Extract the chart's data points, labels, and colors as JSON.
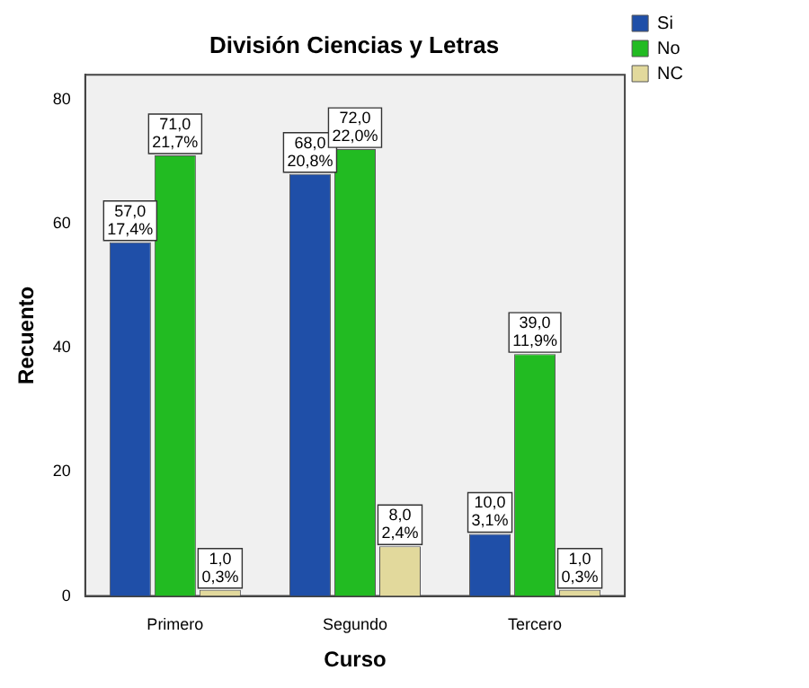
{
  "chart_data": {
    "type": "bar",
    "title": "División Ciencias y Letras",
    "xlabel": "Curso",
    "ylabel": "Recuento",
    "categories": [
      "Primero",
      "Segundo",
      "Tercero"
    ],
    "series": [
      {
        "name": "Si",
        "color": "#1f4fa8",
        "values": [
          57,
          68,
          10
        ],
        "value_labels": [
          "57,0\n17,4%",
          "68,0\n20,8%",
          "10,0\n3,1%"
        ]
      },
      {
        "name": "No",
        "color": "#22bb22",
        "values": [
          71,
          72,
          39
        ],
        "value_labels": [
          "71,0\n21,7%",
          "72,0\n22,0%",
          "39,0\n11,9%"
        ]
      },
      {
        "name": "NC",
        "color": "#e2d99c",
        "values": [
          1,
          8,
          1
        ],
        "value_labels": [
          "1,0\n0,3%",
          "8,0\n2,4%",
          "1,0\n0,3%"
        ]
      }
    ],
    "ylim": [
      0,
      84
    ],
    "yticks": [
      0,
      20,
      40,
      60,
      80
    ],
    "grid": false,
    "legend": "top right"
  }
}
